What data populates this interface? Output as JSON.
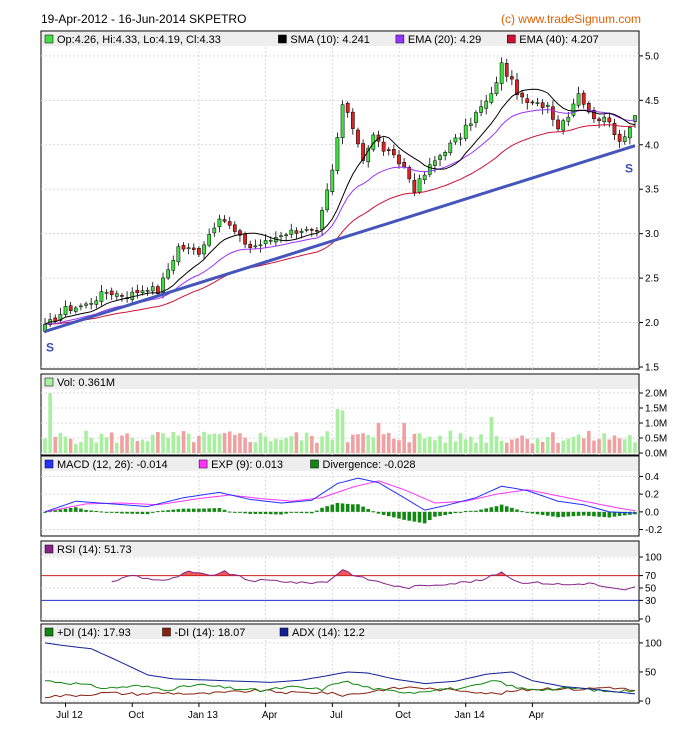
{
  "header": {
    "title": "19-Apr-2012 - 16-Jun-2014 SKPETRO",
    "credit": "(c) www.tradeSignum.com"
  },
  "colors": {
    "up_candle": "#44dd44",
    "down_candle": "#dd2222",
    "sma": "#000000",
    "ema20": "#9933ff",
    "ema40": "#cc1133",
    "trendline": "#4455bb",
    "vol_up": "#a8f0a0",
    "vol_down": "#f0a0a0",
    "macd": "#2233ff",
    "exp": "#ff33ff",
    "divergence": "#118811",
    "rsi": "#882288",
    "rsi_fill": "#ee5555",
    "rsi70_line": "#cc2222",
    "rsi30_line": "#2233cc",
    "plus_di": "#118811",
    "minus_di": "#882211",
    "adx": "#112299"
  },
  "legends": {
    "price": [
      {
        "label": "Op:4.26, Hi:4.33, Lo:4.19, Cl:4.33",
        "color": "#44dd44"
      },
      {
        "label": "SMA (10): 4.241",
        "color": "#000000"
      },
      {
        "label": "EMA (20): 4.29",
        "color": "#9933ff"
      },
      {
        "label": "EMA (40): 4.207",
        "color": "#cc1133"
      }
    ],
    "volume": [
      {
        "label": "Vol: 0.361M",
        "color": "#a8f0a0"
      }
    ],
    "macd": [
      {
        "label": "MACD (12, 26): -0.014",
        "color": "#2233ff"
      },
      {
        "label": "EXP (9): 0.013",
        "color": "#ff33ff"
      },
      {
        "label": "Divergence: -0.028",
        "color": "#118811"
      }
    ],
    "rsi": [
      {
        "label": "RSI (14): 51.73",
        "color": "#882288"
      }
    ],
    "adx": [
      {
        "label": "+DI (14): 17.93",
        "color": "#118811"
      },
      {
        "label": "-DI (14): 18.07",
        "color": "#882211"
      },
      {
        "label": "ADX (14): 12.2",
        "color": "#112299"
      }
    ]
  },
  "x_axis_labels": [
    "Jul 12",
    "Oct",
    "Jan 13",
    "Apr",
    "Jul",
    "Oct",
    "Jan 14",
    "Apr"
  ],
  "support_labels": [
    "S",
    "S"
  ],
  "chart_data": [
    {
      "type": "candlestick",
      "panel": "price",
      "ylim": [
        1.5,
        5.1
      ],
      "yticks": [
        "1.5",
        "2.0",
        "2.5",
        "3.0",
        "3.5",
        "4.0",
        "4.5",
        "5.0"
      ],
      "y_values": [
        1.5,
        2.0,
        2.5,
        3.0,
        3.5,
        4.0,
        4.5,
        5.0
      ],
      "key_points": [
        {
          "week": 0,
          "close": 1.95
        },
        {
          "week": 4,
          "close": 2.15
        },
        {
          "week": 8,
          "close": 2.2
        },
        {
          "week": 12,
          "close": 2.35
        },
        {
          "week": 16,
          "close": 2.3
        },
        {
          "week": 20,
          "close": 2.4
        },
        {
          "week": 22,
          "close": 2.35
        },
        {
          "week": 26,
          "close": 2.85
        },
        {
          "week": 30,
          "close": 2.8
        },
        {
          "week": 33,
          "close": 3.1
        },
        {
          "week": 35,
          "close": 3.15
        },
        {
          "week": 38,
          "close": 2.95
        },
        {
          "week": 40,
          "close": 2.85
        },
        {
          "week": 43,
          "close": 2.9
        },
        {
          "week": 46,
          "close": 3.0
        },
        {
          "week": 50,
          "close": 3.05
        },
        {
          "week": 53,
          "close": 3.0
        },
        {
          "week": 56,
          "close": 3.7
        },
        {
          "week": 58,
          "close": 4.45
        },
        {
          "week": 60,
          "close": 4.2
        },
        {
          "week": 62,
          "close": 3.85
        },
        {
          "week": 64,
          "close": 4.1
        },
        {
          "week": 66,
          "close": 3.95
        },
        {
          "week": 70,
          "close": 3.75
        },
        {
          "week": 72,
          "close": 3.5
        },
        {
          "week": 75,
          "close": 3.75
        },
        {
          "week": 78,
          "close": 3.95
        },
        {
          "week": 81,
          "close": 4.1
        },
        {
          "week": 84,
          "close": 4.35
        },
        {
          "week": 87,
          "close": 4.55
        },
        {
          "week": 89,
          "close": 4.9
        },
        {
          "week": 91,
          "close": 4.7
        },
        {
          "week": 93,
          "close": 4.5
        },
        {
          "week": 95,
          "close": 4.45
        },
        {
          "week": 98,
          "close": 4.45
        },
        {
          "week": 100,
          "close": 4.2
        },
        {
          "week": 102,
          "close": 4.35
        },
        {
          "week": 104,
          "close": 4.6
        },
        {
          "week": 106,
          "close": 4.35
        },
        {
          "week": 108,
          "close": 4.3
        },
        {
          "week": 110,
          "close": 4.25
        },
        {
          "week": 112,
          "close": 4.05
        },
        {
          "week": 114,
          "close": 4.2
        },
        {
          "week": 115,
          "close": 4.33
        }
      ],
      "trendline": [
        {
          "week": 0,
          "value": 1.9
        },
        {
          "week": 115,
          "value": 3.99
        }
      ]
    },
    {
      "type": "bar",
      "panel": "volume",
      "ylim": [
        0,
        2.1
      ],
      "yticks": [
        "0.0M",
        "0.5M",
        "1.0M",
        "1.5M",
        "2.0M"
      ],
      "y_values": [
        0,
        0.5,
        1.0,
        1.5,
        2.0
      ],
      "unit": "M",
      "last_value": 0.361
    },
    {
      "type": "line",
      "panel": "macd",
      "ylim": [
        -0.25,
        0.45
      ],
      "yticks": [
        "-0.2",
        "0.0",
        "0.2",
        "0.4"
      ],
      "y_values": [
        -0.2,
        0.0,
        0.2,
        0.4
      ],
      "macd_key_points": [
        {
          "week": 0,
          "value": 0.0
        },
        {
          "week": 6,
          "value": 0.12
        },
        {
          "week": 13,
          "value": 0.09
        },
        {
          "week": 20,
          "value": 0.06
        },
        {
          "week": 27,
          "value": 0.16
        },
        {
          "week": 34,
          "value": 0.22
        },
        {
          "week": 40,
          "value": 0.14
        },
        {
          "week": 46,
          "value": 0.1
        },
        {
          "week": 52,
          "value": 0.13
        },
        {
          "week": 57,
          "value": 0.32
        },
        {
          "week": 61,
          "value": 0.38
        },
        {
          "week": 65,
          "value": 0.33
        },
        {
          "week": 70,
          "value": 0.16
        },
        {
          "week": 74,
          "value": 0.02
        },
        {
          "week": 78,
          "value": 0.07
        },
        {
          "week": 84,
          "value": 0.16
        },
        {
          "week": 89,
          "value": 0.29
        },
        {
          "week": 94,
          "value": 0.24
        },
        {
          "week": 100,
          "value": 0.12
        },
        {
          "week": 105,
          "value": 0.08
        },
        {
          "week": 110,
          "value": 0.0
        },
        {
          "week": 115,
          "value": -0.014
        }
      ],
      "exp_key_points": [
        {
          "week": 0,
          "value": 0.0
        },
        {
          "week": 8,
          "value": 0.09
        },
        {
          "week": 15,
          "value": 0.1
        },
        {
          "week": 22,
          "value": 0.08
        },
        {
          "week": 30,
          "value": 0.15
        },
        {
          "week": 36,
          "value": 0.19
        },
        {
          "week": 42,
          "value": 0.15
        },
        {
          "week": 48,
          "value": 0.12
        },
        {
          "week": 54,
          "value": 0.16
        },
        {
          "week": 60,
          "value": 0.28
        },
        {
          "week": 65,
          "value": 0.35
        },
        {
          "week": 70,
          "value": 0.25
        },
        {
          "week": 76,
          "value": 0.1
        },
        {
          "week": 82,
          "value": 0.12
        },
        {
          "week": 88,
          "value": 0.2
        },
        {
          "week": 94,
          "value": 0.25
        },
        {
          "week": 100,
          "value": 0.18
        },
        {
          "week": 106,
          "value": 0.11
        },
        {
          "week": 112,
          "value": 0.04
        },
        {
          "week": 115,
          "value": 0.013
        }
      ]
    },
    {
      "type": "line",
      "panel": "rsi",
      "ylim": [
        0,
        100
      ],
      "yticks": [
        "0",
        "30",
        "50",
        "70",
        "100"
      ],
      "y_values": [
        0,
        30,
        50,
        70,
        100
      ],
      "levels": [
        70,
        30
      ],
      "key_points": [
        {
          "week": 0,
          "value": 60
        },
        {
          "week": 13,
          "value": 60
        },
        {
          "week": 17,
          "value": 71
        },
        {
          "week": 20,
          "value": 65
        },
        {
          "week": 24,
          "value": 62
        },
        {
          "week": 28,
          "value": 76
        },
        {
          "week": 32,
          "value": 70
        },
        {
          "week": 35,
          "value": 76
        },
        {
          "week": 40,
          "value": 62
        },
        {
          "week": 45,
          "value": 62
        },
        {
          "week": 50,
          "value": 58
        },
        {
          "week": 55,
          "value": 60
        },
        {
          "week": 58,
          "value": 80
        },
        {
          "week": 61,
          "value": 68
        },
        {
          "week": 66,
          "value": 58
        },
        {
          "week": 70,
          "value": 50
        },
        {
          "week": 75,
          "value": 55
        },
        {
          "week": 80,
          "value": 58
        },
        {
          "week": 85,
          "value": 62
        },
        {
          "week": 89,
          "value": 76
        },
        {
          "week": 92,
          "value": 60
        },
        {
          "week": 97,
          "value": 58
        },
        {
          "week": 102,
          "value": 55
        },
        {
          "week": 106,
          "value": 58
        },
        {
          "week": 110,
          "value": 50
        },
        {
          "week": 113,
          "value": 46
        },
        {
          "week": 115,
          "value": 51.73
        }
      ]
    },
    {
      "type": "line",
      "panel": "adx",
      "ylim": [
        0,
        105
      ],
      "yticks": [
        "0",
        "50",
        "100"
      ],
      "y_values": [
        0,
        50,
        100
      ],
      "adx_key_points": [
        {
          "week": 0,
          "value": 100
        },
        {
          "week": 4,
          "value": 95
        },
        {
          "week": 9,
          "value": 90
        },
        {
          "week": 14,
          "value": 70
        },
        {
          "week": 20,
          "value": 45
        },
        {
          "week": 25,
          "value": 38
        },
        {
          "week": 32,
          "value": 36
        },
        {
          "week": 38,
          "value": 34
        },
        {
          "week": 44,
          "value": 32
        },
        {
          "week": 50,
          "value": 36
        },
        {
          "week": 54,
          "value": 42
        },
        {
          "week": 59,
          "value": 50
        },
        {
          "week": 63,
          "value": 48
        },
        {
          "week": 68,
          "value": 38
        },
        {
          "week": 74,
          "value": 30
        },
        {
          "week": 80,
          "value": 34
        },
        {
          "week": 86,
          "value": 46
        },
        {
          "week": 91,
          "value": 50
        },
        {
          "week": 95,
          "value": 35
        },
        {
          "week": 101,
          "value": 25
        },
        {
          "week": 107,
          "value": 20
        },
        {
          "week": 112,
          "value": 15
        },
        {
          "week": 115,
          "value": 12.2
        }
      ],
      "plus_di_key_points": [
        {
          "week": 0,
          "value": 35
        },
        {
          "week": 6,
          "value": 30
        },
        {
          "week": 12,
          "value": 22
        },
        {
          "week": 18,
          "value": 26
        },
        {
          "week": 24,
          "value": 20
        },
        {
          "week": 30,
          "value": 28
        },
        {
          "week": 36,
          "value": 22
        },
        {
          "week": 42,
          "value": 18
        },
        {
          "week": 48,
          "value": 24
        },
        {
          "week": 54,
          "value": 20
        },
        {
          "week": 58,
          "value": 35
        },
        {
          "week": 62,
          "value": 25
        },
        {
          "week": 66,
          "value": 18
        },
        {
          "week": 72,
          "value": 15
        },
        {
          "week": 76,
          "value": 20
        },
        {
          "week": 82,
          "value": 22
        },
        {
          "week": 88,
          "value": 35
        },
        {
          "week": 92,
          "value": 22
        },
        {
          "week": 98,
          "value": 20
        },
        {
          "week": 104,
          "value": 22
        },
        {
          "week": 110,
          "value": 16
        },
        {
          "week": 115,
          "value": 17.93
        }
      ],
      "minus_di_key_points": [
        {
          "week": 0,
          "value": 8
        },
        {
          "week": 6,
          "value": 10
        },
        {
          "week": 12,
          "value": 14
        },
        {
          "week": 18,
          "value": 12
        },
        {
          "week": 24,
          "value": 14
        },
        {
          "week": 30,
          "value": 12
        },
        {
          "week": 36,
          "value": 15
        },
        {
          "week": 42,
          "value": 18
        },
        {
          "week": 48,
          "value": 14
        },
        {
          "week": 54,
          "value": 15
        },
        {
          "week": 58,
          "value": 10
        },
        {
          "week": 62,
          "value": 14
        },
        {
          "week": 66,
          "value": 20
        },
        {
          "week": 72,
          "value": 24
        },
        {
          "week": 76,
          "value": 20
        },
        {
          "week": 82,
          "value": 18
        },
        {
          "week": 88,
          "value": 12
        },
        {
          "week": 92,
          "value": 18
        },
        {
          "week": 98,
          "value": 22
        },
        {
          "week": 104,
          "value": 20
        },
        {
          "week": 110,
          "value": 24
        },
        {
          "week": 115,
          "value": 18.07
        }
      ]
    }
  ]
}
